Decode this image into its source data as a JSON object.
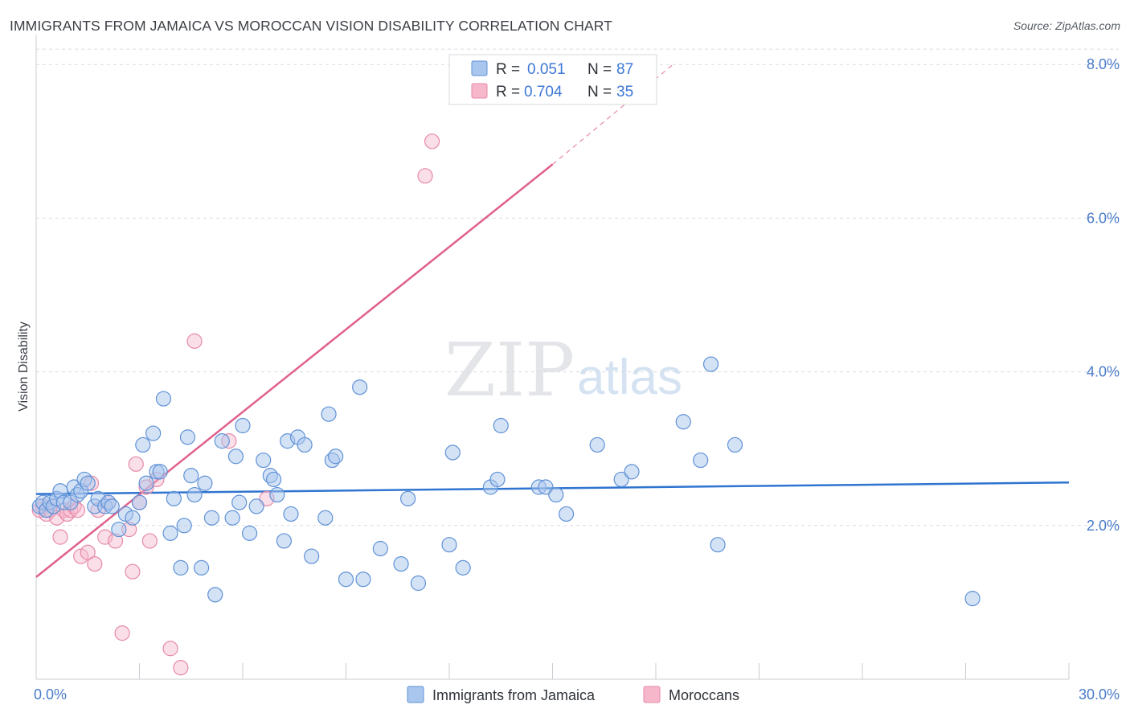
{
  "header": {
    "title": "IMMIGRANTS FROM JAMAICA VS MOROCCAN VISION DISABILITY CORRELATION CHART",
    "source": "Source: ZipAtlas.com"
  },
  "watermark": {
    "zip": "ZIP",
    "atlas": "atlas"
  },
  "legend": {
    "rows": [
      {
        "r_label": "R =",
        "r_value": "0.051",
        "n_label": "N =",
        "n_value": "87"
      },
      {
        "r_label": "R =",
        "r_value": "0.704",
        "n_label": "N =",
        "n_value": "35"
      }
    ]
  },
  "bottom_legend": [
    "Immigrants from Jamaica",
    "Moroccans"
  ],
  "colors": {
    "blue_fill": "#a9c6ee",
    "blue_stroke": "#5f92d6",
    "blue_line": "#2f74d0",
    "pink_fill": "#f6b7cb",
    "pink_stroke": "#e58aa9",
    "pink_line": "#e0608c",
    "grid": "#d8dbe0",
    "tick_label": "#4a7cc9"
  },
  "chart_data": {
    "type": "scatter",
    "title": "IMMIGRANTS FROM JAMAICA VS MOROCCAN VISION DISABILITY CORRELATION CHART",
    "xlabel": "",
    "ylabel": "Vision Disability",
    "xlim": [
      0,
      30
    ],
    "ylim": [
      0,
      8.3
    ],
    "x_tick_labels": [
      "0.0%",
      "30.0%"
    ],
    "y_ticks": [
      2,
      4,
      6,
      8
    ],
    "y_tick_labels": [
      "2.0%",
      "4.0%",
      "6.0%",
      "8.0%"
    ],
    "grid": "horizontal dashed",
    "legend_position": "top-center",
    "series": [
      {
        "name": "Immigrants from Jamaica",
        "color": "#a9c6ee",
        "r": 0.051,
        "n": 87,
        "trend": {
          "x": [
            0,
            30
          ],
          "y": [
            2.41,
            2.56
          ]
        },
        "points": [
          [
            0.1,
            2.25
          ],
          [
            0.2,
            2.3
          ],
          [
            0.3,
            2.2
          ],
          [
            0.4,
            2.3
          ],
          [
            0.5,
            2.25
          ],
          [
            0.6,
            2.35
          ],
          [
            0.7,
            2.45
          ],
          [
            0.8,
            2.3
          ],
          [
            1.0,
            2.3
          ],
          [
            1.1,
            2.5
          ],
          [
            1.2,
            2.4
          ],
          [
            1.3,
            2.45
          ],
          [
            1.4,
            2.6
          ],
          [
            1.5,
            2.55
          ],
          [
            1.7,
            2.25
          ],
          [
            1.8,
            2.35
          ],
          [
            2.0,
            2.25
          ],
          [
            2.1,
            2.3
          ],
          [
            2.2,
            2.25
          ],
          [
            2.4,
            1.95
          ],
          [
            2.6,
            2.15
          ],
          [
            2.8,
            2.1
          ],
          [
            3.0,
            2.3
          ],
          [
            3.1,
            3.05
          ],
          [
            3.2,
            2.55
          ],
          [
            3.4,
            3.2
          ],
          [
            3.5,
            2.7
          ],
          [
            3.6,
            2.7
          ],
          [
            3.7,
            3.65
          ],
          [
            3.9,
            1.9
          ],
          [
            4.0,
            2.35
          ],
          [
            4.2,
            1.45
          ],
          [
            4.3,
            2.0
          ],
          [
            4.4,
            3.15
          ],
          [
            4.5,
            2.65
          ],
          [
            4.6,
            2.4
          ],
          [
            4.8,
            1.45
          ],
          [
            4.9,
            2.55
          ],
          [
            5.1,
            2.1
          ],
          [
            5.2,
            1.1
          ],
          [
            5.4,
            3.1
          ],
          [
            5.7,
            2.1
          ],
          [
            5.8,
            2.9
          ],
          [
            5.9,
            2.3
          ],
          [
            6.0,
            3.3
          ],
          [
            6.2,
            1.9
          ],
          [
            6.4,
            2.25
          ],
          [
            6.6,
            2.85
          ],
          [
            6.8,
            2.65
          ],
          [
            6.9,
            2.6
          ],
          [
            7.0,
            2.4
          ],
          [
            7.2,
            1.8
          ],
          [
            7.3,
            3.1
          ],
          [
            7.4,
            2.15
          ],
          [
            7.6,
            3.15
          ],
          [
            7.8,
            3.05
          ],
          [
            8.0,
            1.6
          ],
          [
            8.4,
            2.1
          ],
          [
            8.5,
            3.45
          ],
          [
            8.6,
            2.85
          ],
          [
            8.7,
            2.9
          ],
          [
            9.0,
            1.3
          ],
          [
            9.4,
            3.8
          ],
          [
            9.5,
            1.3
          ],
          [
            10.0,
            1.7
          ],
          [
            10.6,
            1.5
          ],
          [
            10.8,
            2.35
          ],
          [
            11.1,
            1.25
          ],
          [
            12.0,
            1.75
          ],
          [
            12.1,
            2.95
          ],
          [
            12.4,
            1.45
          ],
          [
            13.2,
            2.5
          ],
          [
            13.4,
            2.6
          ],
          [
            13.5,
            3.3
          ],
          [
            14.6,
            2.5
          ],
          [
            14.8,
            2.5
          ],
          [
            15.1,
            2.4
          ],
          [
            15.4,
            2.15
          ],
          [
            16.3,
            3.05
          ],
          [
            17.0,
            2.6
          ],
          [
            17.3,
            2.7
          ],
          [
            18.8,
            3.35
          ],
          [
            19.3,
            2.85
          ],
          [
            19.6,
            4.1
          ],
          [
            19.8,
            1.75
          ],
          [
            20.3,
            3.05
          ],
          [
            27.2,
            1.05
          ]
        ]
      },
      {
        "name": "Moroccans",
        "color": "#f6b7cb",
        "r": 0.704,
        "n": 35,
        "trend": {
          "x": [
            0,
            15
          ],
          "y": [
            1.33,
            6.7
          ]
        },
        "trend_dashed": {
          "x": [
            15,
            18.5
          ],
          "y": [
            6.7,
            8.0
          ]
        },
        "points": [
          [
            0.1,
            2.2
          ],
          [
            0.2,
            2.25
          ],
          [
            0.3,
            2.15
          ],
          [
            0.4,
            2.2
          ],
          [
            0.5,
            2.25
          ],
          [
            0.6,
            2.1
          ],
          [
            0.8,
            2.2
          ],
          [
            0.7,
            1.85
          ],
          [
            0.9,
            2.15
          ],
          [
            1.0,
            2.2
          ],
          [
            1.1,
            2.25
          ],
          [
            1.2,
            2.2
          ],
          [
            1.3,
            1.6
          ],
          [
            1.5,
            1.65
          ],
          [
            1.6,
            2.55
          ],
          [
            1.7,
            1.5
          ],
          [
            1.8,
            2.2
          ],
          [
            2.0,
            1.85
          ],
          [
            2.1,
            2.3
          ],
          [
            2.3,
            1.8
          ],
          [
            2.5,
            0.6
          ],
          [
            2.7,
            1.95
          ],
          [
            2.8,
            1.4
          ],
          [
            2.9,
            2.8
          ],
          [
            3.0,
            2.3
          ],
          [
            3.2,
            2.5
          ],
          [
            3.3,
            1.8
          ],
          [
            3.5,
            2.6
          ],
          [
            3.9,
            0.4
          ],
          [
            4.2,
            0.15
          ],
          [
            4.6,
            4.4
          ],
          [
            5.6,
            3.1
          ],
          [
            6.7,
            2.35
          ],
          [
            11.3,
            6.55
          ],
          [
            11.5,
            7.0
          ]
        ]
      }
    ]
  }
}
